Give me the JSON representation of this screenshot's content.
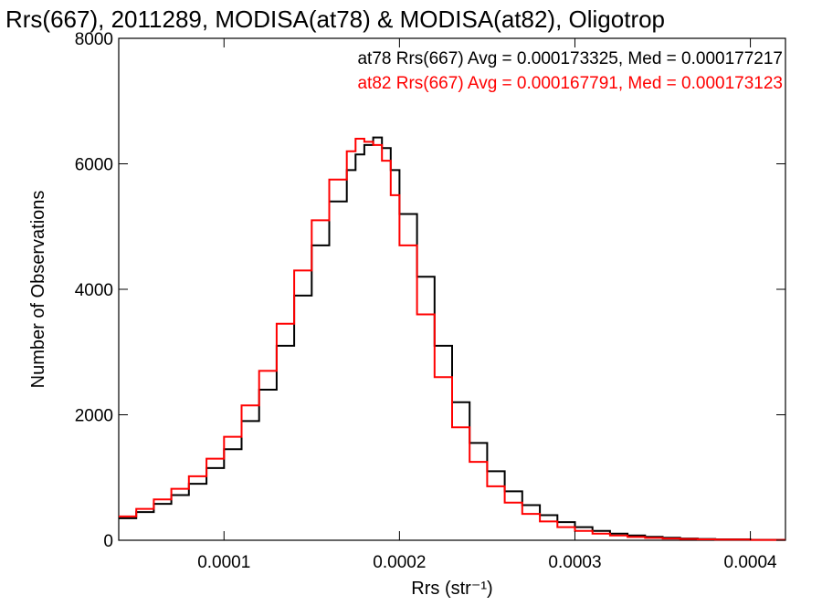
{
  "chart_data": {
    "type": "line",
    "step": true,
    "title": "Rrs(667), 2011289, MODISA(at78) & MODISA(at82), Oligotrop",
    "xlabel": "Rrs (str⁻¹)",
    "ylabel": "Number of Observations",
    "xlim": [
      4e-05,
      0.00042
    ],
    "ylim": [
      0,
      8000
    ],
    "xticks": [
      0.0001,
      0.0002,
      0.0003,
      0.0004
    ],
    "xtick_labels": [
      "0.0001",
      "0.0002",
      "0.0003",
      "0.0004"
    ],
    "yticks": [
      0,
      2000,
      4000,
      6000,
      8000
    ],
    "ytick_labels": [
      "0",
      "2000",
      "4000",
      "6000",
      "8000"
    ],
    "grid": false,
    "legend_position": "top-right",
    "annotations": [
      {
        "text": "at78 Rrs(667) Avg = 0.000173325, Med = 0.000177217",
        "color": "#000000"
      },
      {
        "text": "at82 Rrs(667) Avg = 0.000167791, Med = 0.000173123",
        "color": "#ff0000"
      }
    ],
    "series": [
      {
        "color": "#000000",
        "x": [
          4e-05,
          5e-05,
          6e-05,
          7e-05,
          8e-05,
          9e-05,
          0.0001,
          0.00011,
          0.00012,
          0.00013,
          0.00014,
          0.00015,
          0.00016,
          0.00017,
          0.000175,
          0.00018,
          0.000185,
          0.00019,
          0.000195,
          0.0002,
          0.00021,
          0.00022,
          0.00023,
          0.00024,
          0.00025,
          0.00026,
          0.00027,
          0.00028,
          0.00029,
          0.0003,
          0.00031,
          0.00032,
          0.00033,
          0.00034,
          0.00035,
          0.00036,
          0.00037,
          0.00038,
          0.0004,
          0.00042
        ],
        "values": [
          350,
          450,
          580,
          720,
          900,
          1150,
          1450,
          1900,
          2400,
          3100,
          3900,
          4700,
          5400,
          5900,
          6150,
          6300,
          6420,
          6250,
          5900,
          5200,
          4200,
          3100,
          2200,
          1550,
          1100,
          780,
          560,
          400,
          290,
          210,
          150,
          105,
          75,
          55,
          40,
          28,
          20,
          14,
          8,
          5
        ]
      },
      {
        "color": "#ff0000",
        "x": [
          4e-05,
          5e-05,
          6e-05,
          7e-05,
          8e-05,
          9e-05,
          0.0001,
          0.00011,
          0.00012,
          0.00013,
          0.00014,
          0.00015,
          0.00016,
          0.00017,
          0.000175,
          0.00018,
          0.000185,
          0.00019,
          0.000195,
          0.0002,
          0.00021,
          0.00022,
          0.00023,
          0.00024,
          0.00025,
          0.00026,
          0.00027,
          0.00028,
          0.00029,
          0.0003,
          0.00031,
          0.00032,
          0.00033,
          0.00034,
          0.00035,
          0.00036,
          0.00037,
          0.00038,
          0.0004,
          0.00042
        ],
        "values": [
          380,
          500,
          650,
          820,
          1020,
          1300,
          1650,
          2150,
          2700,
          3450,
          4300,
          5100,
          5750,
          6200,
          6400,
          6350,
          6300,
          6050,
          5500,
          4700,
          3600,
          2600,
          1800,
          1250,
          860,
          600,
          420,
          300,
          210,
          150,
          105,
          75,
          52,
          38,
          28,
          20,
          14,
          10,
          6,
          4
        ]
      }
    ]
  }
}
